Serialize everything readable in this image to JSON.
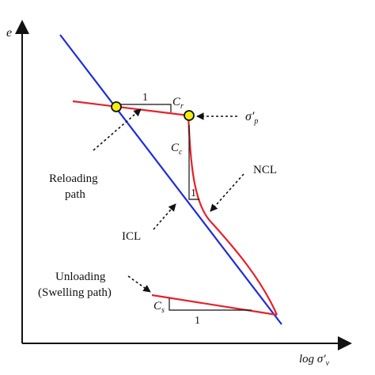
{
  "axes": {
    "y_label": "e",
    "x_label_main": "log σ′",
    "x_label_sub": "v"
  },
  "labels": {
    "reloading": [
      "Reloading",
      "path"
    ],
    "ncl": "NCL",
    "icl": "ICL",
    "unloading": [
      "Unloading",
      "(Swelling path)"
    ],
    "sigma_p_main": "σ′",
    "sigma_p_sub": "p",
    "cr_main": "C",
    "cr_sub": "r",
    "cc_main": "C",
    "cc_sub": "c",
    "cs_main": "C",
    "cs_sub": "s",
    "slope_run_cr": "1",
    "slope_run_cc": "1",
    "slope_run_cs": "1"
  },
  "colors": {
    "axis": "#111111",
    "icl": "#1f2bdc",
    "curve": "#e8202a",
    "point_fill": "#f2ee10",
    "point_stroke": "#111111"
  }
}
